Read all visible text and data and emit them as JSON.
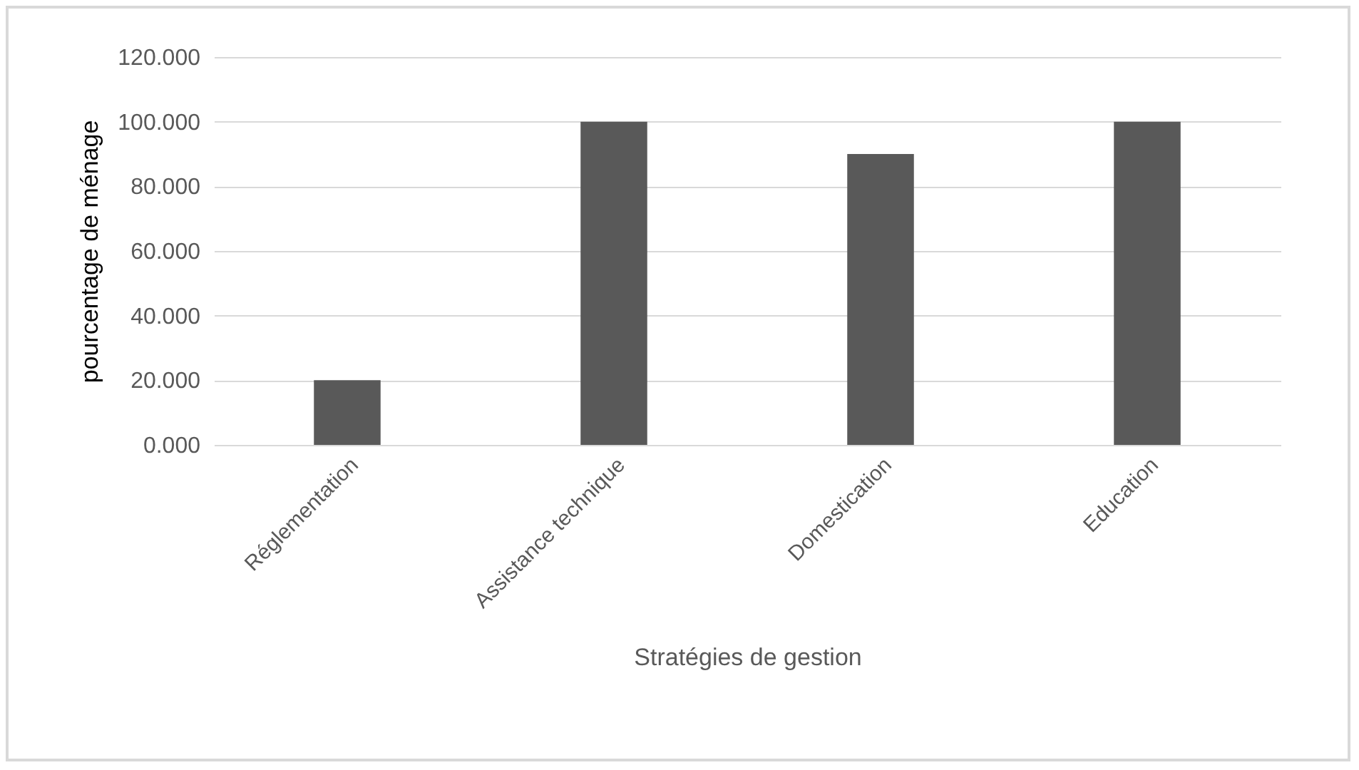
{
  "chart_data": {
    "type": "bar",
    "xlabel": "Stratégies de gestion",
    "ylabel": "pourcentage de ménage",
    "categories": [
      "Réglementation",
      "Assistance technique",
      "Domestication",
      "Education"
    ],
    "values": [
      20,
      100,
      90,
      100
    ],
    "color": "#595959",
    "ylim": [
      0,
      120
    ],
    "yticks": [
      {
        "value": 0,
        "label": "0.000"
      },
      {
        "value": 20,
        "label": "20.000"
      },
      {
        "value": 40,
        "label": "40.000"
      },
      {
        "value": 60,
        "label": "60.000"
      },
      {
        "value": 80,
        "label": "80.000"
      },
      {
        "value": 100,
        "label": "100.000"
      },
      {
        "value": 120,
        "label": "120.000"
      }
    ],
    "grid": "y"
  }
}
